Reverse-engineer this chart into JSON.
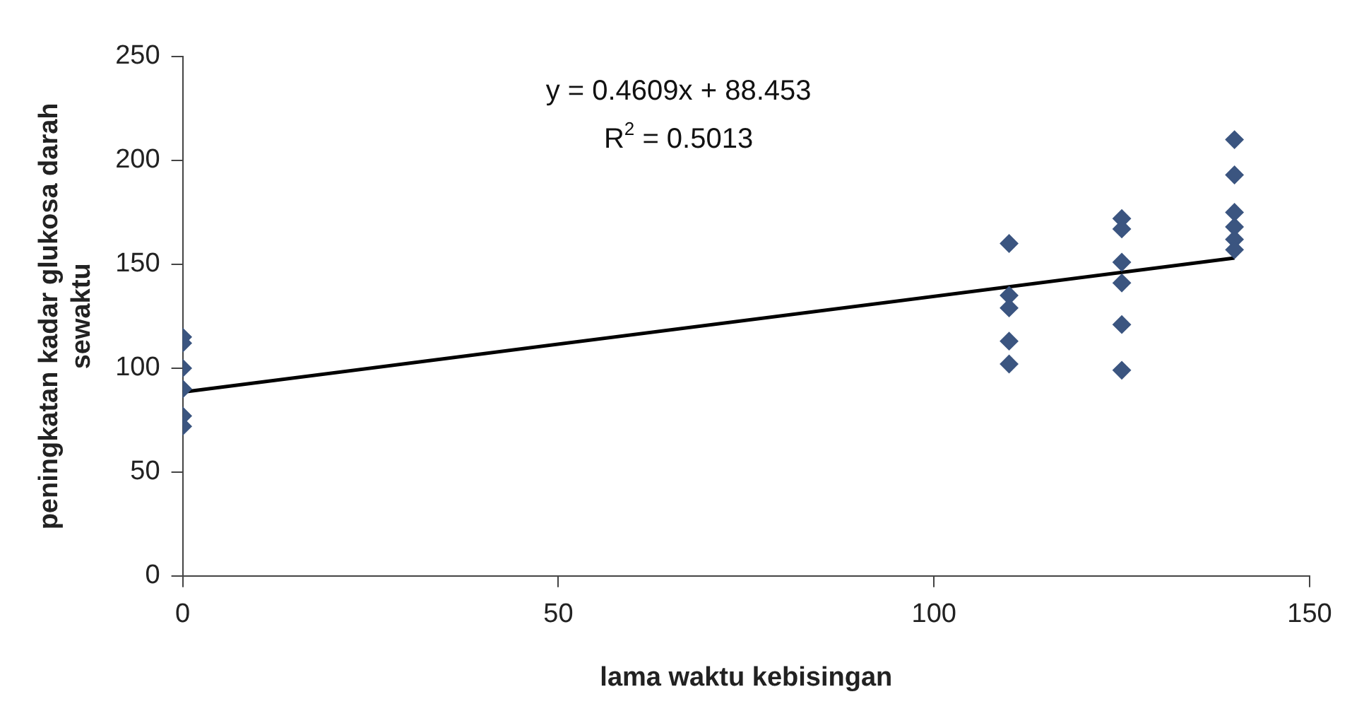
{
  "chart_data": {
    "type": "scatter",
    "xlabel": "lama waktu kebisingan",
    "ylabel": "peningkatan kadar glukosa darah sewaktu",
    "xlim": [
      0,
      150
    ],
    "xticks": [
      0,
      50,
      100,
      150
    ],
    "ylim": [
      0,
      250
    ],
    "yticks": [
      0,
      50,
      100,
      150,
      200,
      250
    ],
    "grid": false,
    "legend": false,
    "annotations": [
      "y = 0.4609x + 88.453",
      "R$^{2}$ = 0.5013"
    ],
    "series": [
      {
        "marker": "diamond",
        "color": "#3b5580",
        "x": [
          0,
          0,
          0,
          0,
          0,
          0,
          110,
          110,
          110,
          110,
          110,
          125,
          125,
          125,
          125,
          125,
          125,
          140,
          140,
          140,
          140,
          140,
          140
        ],
        "values": [
          115,
          112,
          100,
          90,
          77,
          72,
          160,
          135,
          129,
          113,
          102,
          172,
          167,
          151,
          141,
          121,
          99,
          210,
          193,
          175,
          168,
          162,
          157
        ]
      },
      {
        "type": "line",
        "marker": "none",
        "color": "#000000",
        "x": [
          0,
          140
        ],
        "values": [
          88.5,
          153
        ]
      }
    ]
  }
}
